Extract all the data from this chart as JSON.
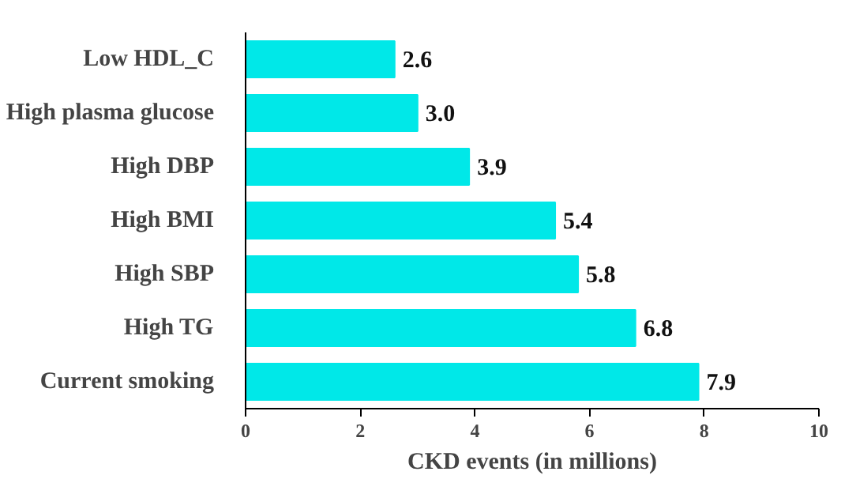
{
  "chart_data": {
    "type": "bar",
    "orientation": "horizontal",
    "xlabel": "CKD events (in millions)",
    "categories": [
      "Low HDL_C",
      "High plasma glucose",
      "High DBP",
      "High BMI",
      "High SBP",
      "High TG",
      "Current smoking"
    ],
    "values": [
      2.6,
      3.0,
      3.9,
      5.4,
      5.8,
      6.8,
      7.9
    ],
    "value_labels": [
      "2.6",
      "3.0",
      "3.9",
      "5.4",
      "5.8",
      "6.8",
      "7.9"
    ],
    "color": "#00e8e8",
    "xlim": [
      0,
      10
    ],
    "xticks": [
      0,
      2,
      4,
      6,
      8,
      10
    ],
    "grid": false
  }
}
